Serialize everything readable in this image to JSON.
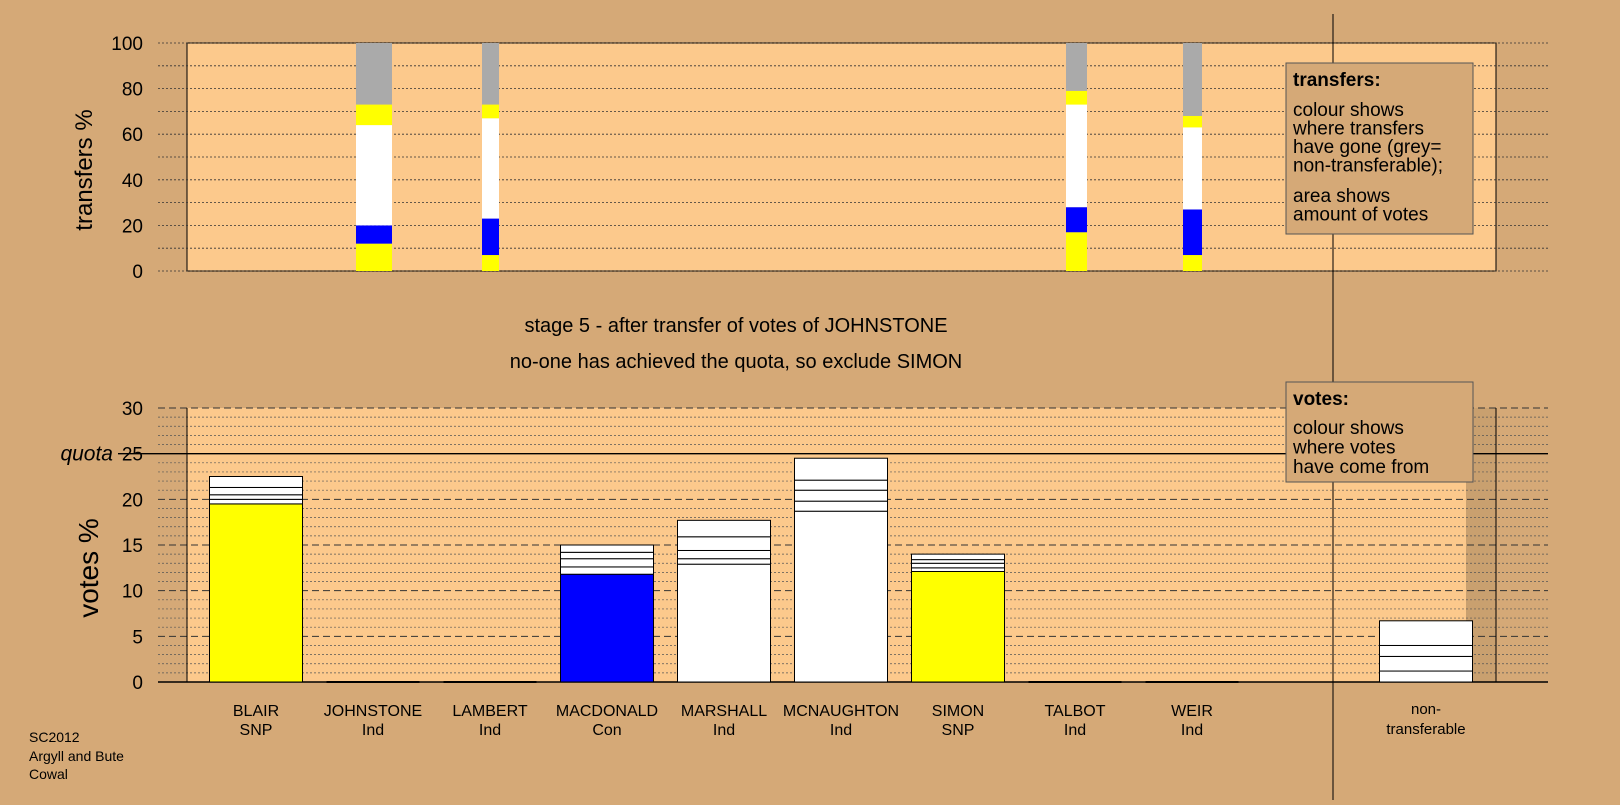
{
  "chart_data": [
    {
      "type": "bar",
      "id": "transfers",
      "ylabel": "transfers %",
      "ylim": [
        0,
        100
      ],
      "yticks": [
        0,
        20,
        40,
        60,
        80,
        100
      ],
      "columns": [
        {
          "candidate": "JOHNSTONE",
          "segments": [
            {
              "value": 12,
              "color": "#ffff00"
            },
            {
              "value": 8,
              "color": "#0000ff"
            },
            {
              "value": 44,
              "color": "#ffffff"
            },
            {
              "value": 9,
              "color": "#ffff00"
            },
            {
              "value": 27,
              "color": "#aaaaaa"
            }
          ]
        },
        {
          "candidate": "LAMBERT",
          "segments": [
            {
              "value": 7,
              "color": "#ffff00"
            },
            {
              "value": 16,
              "color": "#0000ff"
            },
            {
              "value": 44,
              "color": "#ffffff"
            },
            {
              "value": 6,
              "color": "#ffff00"
            },
            {
              "value": 27,
              "color": "#aaaaaa"
            }
          ]
        },
        {
          "candidate": "TALBOT",
          "segments": [
            {
              "value": 17,
              "color": "#ffff00"
            },
            {
              "value": 11,
              "color": "#0000ff"
            },
            {
              "value": 45,
              "color": "#ffffff"
            },
            {
              "value": 6,
              "color": "#ffff00"
            },
            {
              "value": 21,
              "color": "#aaaaaa"
            }
          ]
        },
        {
          "candidate": "WEIR",
          "segments": [
            {
              "value": 7,
              "color": "#ffff00"
            },
            {
              "value": 20,
              "color": "#0000ff"
            },
            {
              "value": 36,
              "color": "#ffffff"
            },
            {
              "value": 5,
              "color": "#ffff00"
            },
            {
              "value": 32,
              "color": "#aaaaaa"
            }
          ]
        }
      ],
      "legend": {
        "title": "transfers:",
        "lines1": [
          "colour shows",
          "where transfers",
          "have gone (grey=",
          "non-transferable);"
        ],
        "lines2": [
          "area shows",
          "amount of votes"
        ]
      }
    },
    {
      "type": "bar",
      "id": "votes",
      "ylabel": "votes %",
      "ylim": [
        0,
        30
      ],
      "yticks": [
        0,
        5,
        10,
        15,
        20,
        25,
        30
      ],
      "quota": {
        "label": "quota",
        "value": 25
      },
      "categories": [
        "BLAIR",
        "JOHNSTONE",
        "LAMBERT",
        "MACDONALD",
        "MARSHALL",
        "MCNAUGHTON",
        "SIMON",
        "TALBOT",
        "WEIR"
      ],
      "parties": [
        "SNP",
        "Ind",
        "Ind",
        "Con",
        "Ind",
        "Ind",
        "SNP",
        "Ind",
        "Ind"
      ],
      "series": [
        {
          "candidate": "BLAIR",
          "total": 22.5,
          "segments": [
            {
              "value": 19.5,
              "color": "#ffff00"
            },
            {
              "value": 0.5,
              "color": "#ffffff"
            },
            {
              "value": 0.5,
              "color": "#ffffff"
            },
            {
              "value": 0.8,
              "color": "#ffffff"
            },
            {
              "value": 1.2,
              "color": "#ffffff"
            }
          ]
        },
        {
          "candidate": "JOHNSTONE",
          "total": 0,
          "segments": []
        },
        {
          "candidate": "LAMBERT",
          "total": 0,
          "segments": []
        },
        {
          "candidate": "MACDONALD",
          "total": 15.0,
          "segments": [
            {
              "value": 11.8,
              "color": "#0000ff"
            },
            {
              "value": 0.8,
              "color": "#ffffff"
            },
            {
              "value": 0.9,
              "color": "#ffffff"
            },
            {
              "value": 0.7,
              "color": "#ffffff"
            },
            {
              "value": 0.8,
              "color": "#ffffff"
            }
          ]
        },
        {
          "candidate": "MARSHALL",
          "total": 17.7,
          "segments": [
            {
              "value": 12.9,
              "color": "#ffffff"
            },
            {
              "value": 0.6,
              "color": "#ffffff"
            },
            {
              "value": 0.9,
              "color": "#ffffff"
            },
            {
              "value": 1.5,
              "color": "#ffffff"
            },
            {
              "value": 1.8,
              "color": "#ffffff"
            }
          ]
        },
        {
          "candidate": "MCNAUGHTON",
          "total": 24.5,
          "segments": [
            {
              "value": 18.7,
              "color": "#ffffff"
            },
            {
              "value": 1.1,
              "color": "#ffffff"
            },
            {
              "value": 1.2,
              "color": "#ffffff"
            },
            {
              "value": 1.1,
              "color": "#ffffff"
            },
            {
              "value": 2.4,
              "color": "#ffffff"
            }
          ]
        },
        {
          "candidate": "SIMON",
          "total": 14.0,
          "segments": [
            {
              "value": 12.1,
              "color": "#ffff00"
            },
            {
              "value": 0.4,
              "color": "#ffffff"
            },
            {
              "value": 0.5,
              "color": "#ffffff"
            },
            {
              "value": 0.4,
              "color": "#ffffff"
            },
            {
              "value": 0.6,
              "color": "#ffffff"
            }
          ]
        },
        {
          "candidate": "TALBOT",
          "total": 0,
          "segments": []
        },
        {
          "candidate": "WEIR",
          "total": 0,
          "segments": []
        }
      ],
      "nontransferable": {
        "label_line1": "non-",
        "label_line2": "transferable",
        "total": 6.7,
        "segments": [
          {
            "value": 1.2,
            "color": "#ffffff"
          },
          {
            "value": 1.6,
            "color": "#ffffff"
          },
          {
            "value": 1.2,
            "color": "#ffffff"
          },
          {
            "value": 2.7,
            "color": "#ffffff"
          }
        ]
      },
      "legend": {
        "title": "votes:",
        "lines": [
          "colour shows",
          "where votes",
          "have come from"
        ]
      }
    }
  ],
  "stage_text": {
    "line1": "stage 5 - after transfer of votes of JOHNSTONE",
    "line2": "no-one has achieved the quota, so exclude SIMON"
  },
  "footer": {
    "lines": [
      "SC2012",
      "Argyll and Bute",
      "Cowal"
    ]
  },
  "colors": {
    "background": "#d5a977",
    "plot_background": "#fcc98c",
    "shade": "#c9a06f"
  }
}
